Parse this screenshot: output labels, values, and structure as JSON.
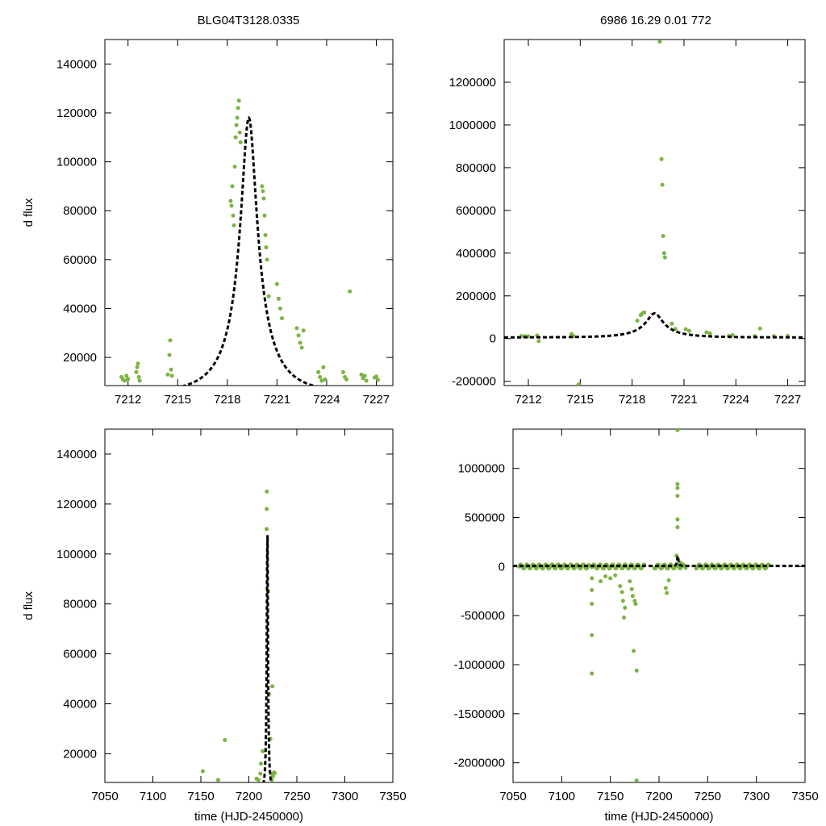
{
  "header": {
    "left_title": "BLG04T3128.0335",
    "right_title": "6986  16.29   0.01   772"
  },
  "colors": {
    "points": "#7cb342",
    "model": "#000000",
    "frame": "#000000"
  },
  "chart_data": [
    {
      "id": "top-left",
      "type": "scatter",
      "title": "BLG04T3128.0335",
      "xlabel": "",
      "ylabel": "d flux",
      "xlim": [
        7210.6,
        7228
      ],
      "ylim": [
        8500,
        150000
      ],
      "xticks": [
        7212,
        7215,
        7218,
        7221,
        7224,
        7227
      ],
      "yticks": [
        20000,
        40000,
        60000,
        80000,
        100000,
        120000,
        140000
      ],
      "ytick_labels": [
        "20000",
        "40000",
        "60000",
        "80000",
        "100000",
        "120000",
        "140000"
      ],
      "grid": false,
      "points": [
        [
          7211.6,
          12000
        ],
        [
          7211.7,
          11000
        ],
        [
          7211.8,
          10500
        ],
        [
          7211.9,
          12500
        ],
        [
          7212.0,
          11200
        ],
        [
          7212.5,
          14000
        ],
        [
          7212.55,
          16000
        ],
        [
          7212.6,
          17500
        ],
        [
          7212.65,
          12000
        ],
        [
          7212.7,
          10500
        ],
        [
          7214.4,
          13000
        ],
        [
          7214.5,
          21000
        ],
        [
          7214.55,
          27000
        ],
        [
          7214.6,
          15000
        ],
        [
          7214.65,
          12500
        ],
        [
          7218.2,
          84000
        ],
        [
          7218.25,
          82000
        ],
        [
          7218.3,
          90000
        ],
        [
          7218.35,
          78000
        ],
        [
          7218.4,
          74000
        ],
        [
          7218.45,
          98000
        ],
        [
          7218.5,
          110000
        ],
        [
          7218.55,
          115000
        ],
        [
          7218.6,
          118000
        ],
        [
          7218.65,
          122000
        ],
        [
          7218.7,
          125000
        ],
        [
          7218.75,
          112000
        ],
        [
          7218.8,
          108000
        ],
        [
          7220.1,
          90000
        ],
        [
          7220.15,
          88000
        ],
        [
          7220.2,
          85000
        ],
        [
          7220.25,
          78000
        ],
        [
          7220.3,
          70000
        ],
        [
          7220.35,
          65000
        ],
        [
          7220.4,
          60000
        ],
        [
          7220.5,
          45000
        ],
        [
          7221.0,
          50000
        ],
        [
          7221.1,
          44000
        ],
        [
          7221.2,
          40000
        ],
        [
          7221.3,
          36000
        ],
        [
          7222.2,
          32000
        ],
        [
          7222.3,
          29000
        ],
        [
          7222.4,
          26000
        ],
        [
          7222.5,
          24000
        ],
        [
          7222.6,
          31000
        ],
        [
          7223.5,
          14000
        ],
        [
          7223.6,
          12000
        ],
        [
          7223.7,
          10500
        ],
        [
          7223.8,
          16000
        ],
        [
          7223.9,
          11000
        ],
        [
          7225.0,
          14000
        ],
        [
          7225.1,
          12000
        ],
        [
          7225.2,
          11000
        ],
        [
          7225.4,
          47000
        ],
        [
          7226.1,
          13000
        ],
        [
          7226.2,
          11500
        ],
        [
          7226.3,
          12500
        ],
        [
          7226.4,
          10500
        ],
        [
          7226.9,
          11800
        ],
        [
          7227.0,
          12200
        ],
        [
          7227.1,
          10800
        ]
      ],
      "model": {
        "shape": "point-lens",
        "peak_time": 7219.3,
        "peak_flux": 118000,
        "baseline": 5500,
        "tE": 2.4
      }
    },
    {
      "id": "top-right",
      "type": "scatter",
      "title": "6986  16.29   0.01   772",
      "xlabel": "",
      "ylabel": "",
      "xlim": [
        7210.6,
        7228
      ],
      "ylim": [
        -220000,
        1400000
      ],
      "xticks": [
        7212,
        7215,
        7218,
        7221,
        7224,
        7227
      ],
      "yticks": [
        -200000,
        0,
        200000,
        400000,
        600000,
        800000,
        1000000,
        1200000
      ],
      "ytick_labels": [
        "-200000",
        "0",
        "200000",
        "400000",
        "600000",
        "800000",
        "1000000",
        "1200000"
      ],
      "grid": false,
      "points": [
        [
          7211.6,
          12000
        ],
        [
          7211.8,
          11000
        ],
        [
          7212.0,
          10500
        ],
        [
          7212.5,
          14000
        ],
        [
          7212.6,
          -12000
        ],
        [
          7214.5,
          21000
        ],
        [
          7214.6,
          12000
        ],
        [
          7214.9,
          -215000
        ],
        [
          7218.3,
          84000
        ],
        [
          7218.5,
          110000
        ],
        [
          7218.6,
          118000
        ],
        [
          7218.7,
          122000
        ],
        [
          7219.6,
          1390000
        ],
        [
          7219.7,
          840000
        ],
        [
          7219.75,
          720000
        ],
        [
          7219.8,
          480000
        ],
        [
          7219.85,
          400000
        ],
        [
          7219.9,
          380000
        ],
        [
          7220.3,
          70000
        ],
        [
          7220.5,
          45000
        ],
        [
          7221.1,
          44000
        ],
        [
          7221.3,
          36000
        ],
        [
          7222.3,
          29000
        ],
        [
          7222.5,
          24000
        ],
        [
          7223.6,
          12000
        ],
        [
          7223.8,
          16000
        ],
        [
          7225.1,
          12000
        ],
        [
          7225.4,
          47000
        ],
        [
          7226.2,
          11500
        ],
        [
          7227.0,
          12200
        ]
      ],
      "model": {
        "shape": "point-lens",
        "peak_time": 7219.3,
        "peak_flux": 118000,
        "baseline": 5500,
        "tE": 2.4
      }
    },
    {
      "id": "bottom-left",
      "type": "scatter",
      "title": "",
      "xlabel": "time (HJD-2450000)",
      "ylabel": "d flux",
      "xlim": [
        7050,
        7350
      ],
      "ylim": [
        8500,
        150000
      ],
      "xticks": [
        7050,
        7100,
        7150,
        7200,
        7250,
        7300,
        7350
      ],
      "yticks": [
        20000,
        40000,
        60000,
        80000,
        100000,
        120000,
        140000
      ],
      "ytick_labels": [
        "20000",
        "40000",
        "60000",
        "80000",
        "100000",
        "120000",
        "140000"
      ],
      "grid": false,
      "points": [
        [
          7152,
          13000
        ],
        [
          7168,
          9500
        ],
        [
          7175,
          25500
        ],
        [
          7208,
          10000
        ],
        [
          7210,
          9500
        ],
        [
          7212,
          12000
        ],
        [
          7212.6,
          16000
        ],
        [
          7214.5,
          21000
        ],
        [
          7218.5,
          110000
        ],
        [
          7218.7,
          125000
        ],
        [
          7218.6,
          118000
        ],
        [
          7220.2,
          85000
        ],
        [
          7221.1,
          44000
        ],
        [
          7222.4,
          26000
        ],
        [
          7223.6,
          12000
        ],
        [
          7224.5,
          47000
        ],
        [
          7225.2,
          11000
        ],
        [
          7226.3,
          12500
        ],
        [
          7227.0,
          12200
        ],
        [
          7224,
          9500
        ]
      ],
      "model": {
        "shape": "point-lens",
        "peak_time": 7219.3,
        "peak_flux": 118000,
        "baseline": 5500,
        "tE": 2.4
      }
    },
    {
      "id": "bottom-right",
      "type": "scatter",
      "title": "",
      "xlabel": "time (HJD-2450000)",
      "ylabel": "",
      "xlim": [
        7050,
        7350
      ],
      "ylim": [
        -2200000,
        1400000
      ],
      "xticks": [
        7050,
        7100,
        7150,
        7200,
        7250,
        7300,
        7350
      ],
      "yticks": [
        -2000000,
        -1500000,
        -1000000,
        -500000,
        0,
        500000,
        1000000
      ],
      "ytick_labels": [
        "-2000000",
        "-1500000",
        "-1000000",
        "-500000",
        "0",
        "500000",
        "1000000"
      ],
      "grid": false,
      "baseline_ranges": [
        [
          7056,
          7128
        ],
        [
          7131,
          7185
        ],
        [
          7195,
          7228
        ],
        [
          7238,
          7313
        ]
      ],
      "points": [
        [
          7131,
          -120000
        ],
        [
          7131,
          -240000
        ],
        [
          7131,
          -380000
        ],
        [
          7131,
          -700000
        ],
        [
          7131,
          -1090000
        ],
        [
          7140,
          -150000
        ],
        [
          7145,
          -100000
        ],
        [
          7150,
          -120000
        ],
        [
          7155,
          -90000
        ],
        [
          7160,
          -200000
        ],
        [
          7162,
          -260000
        ],
        [
          7163,
          -350000
        ],
        [
          7164,
          -520000
        ],
        [
          7165,
          -420000
        ],
        [
          7170,
          -150000
        ],
        [
          7172,
          -230000
        ],
        [
          7173,
          -300000
        ],
        [
          7174,
          -860000
        ],
        [
          7175,
          -350000
        ],
        [
          7176,
          -380000
        ],
        [
          7177,
          -1060000
        ],
        [
          7177,
          -2180000
        ],
        [
          7207,
          -220000
        ],
        [
          7208,
          -270000
        ],
        [
          7210,
          -140000
        ],
        [
          7218,
          110000
        ],
        [
          7219,
          1390000
        ],
        [
          7219,
          840000
        ],
        [
          7219,
          800000
        ],
        [
          7219,
          720000
        ],
        [
          7219,
          480000
        ],
        [
          7219,
          400000
        ],
        [
          7222,
          40000
        ]
      ],
      "model": {
        "shape": "point-lens",
        "peak_time": 7219.3,
        "peak_flux": 118000,
        "baseline": 5500,
        "tE": 2.4
      }
    }
  ]
}
